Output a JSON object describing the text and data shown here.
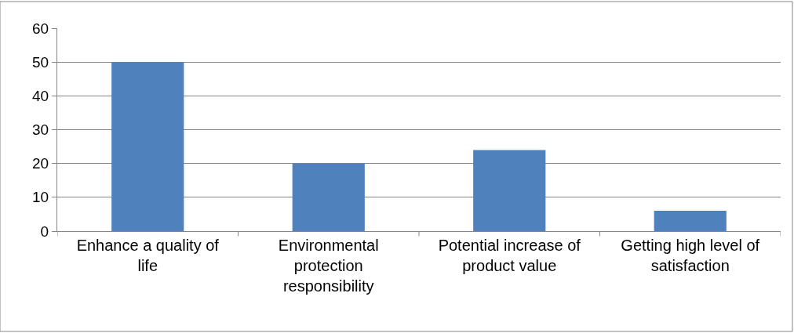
{
  "chart_data": {
    "type": "bar",
    "categories": [
      "Enhance a quality of life",
      "Environmental protection responsibility",
      "Potential increase of product value",
      "Getting high level of satisfaction"
    ],
    "values": [
      50,
      20,
      24,
      6
    ],
    "color": "#4f81bd",
    "ylim": [
      0,
      60
    ],
    "yticks": [
      0,
      10,
      20,
      30,
      40,
      50,
      60
    ],
    "grid": "y",
    "legend": false
  }
}
